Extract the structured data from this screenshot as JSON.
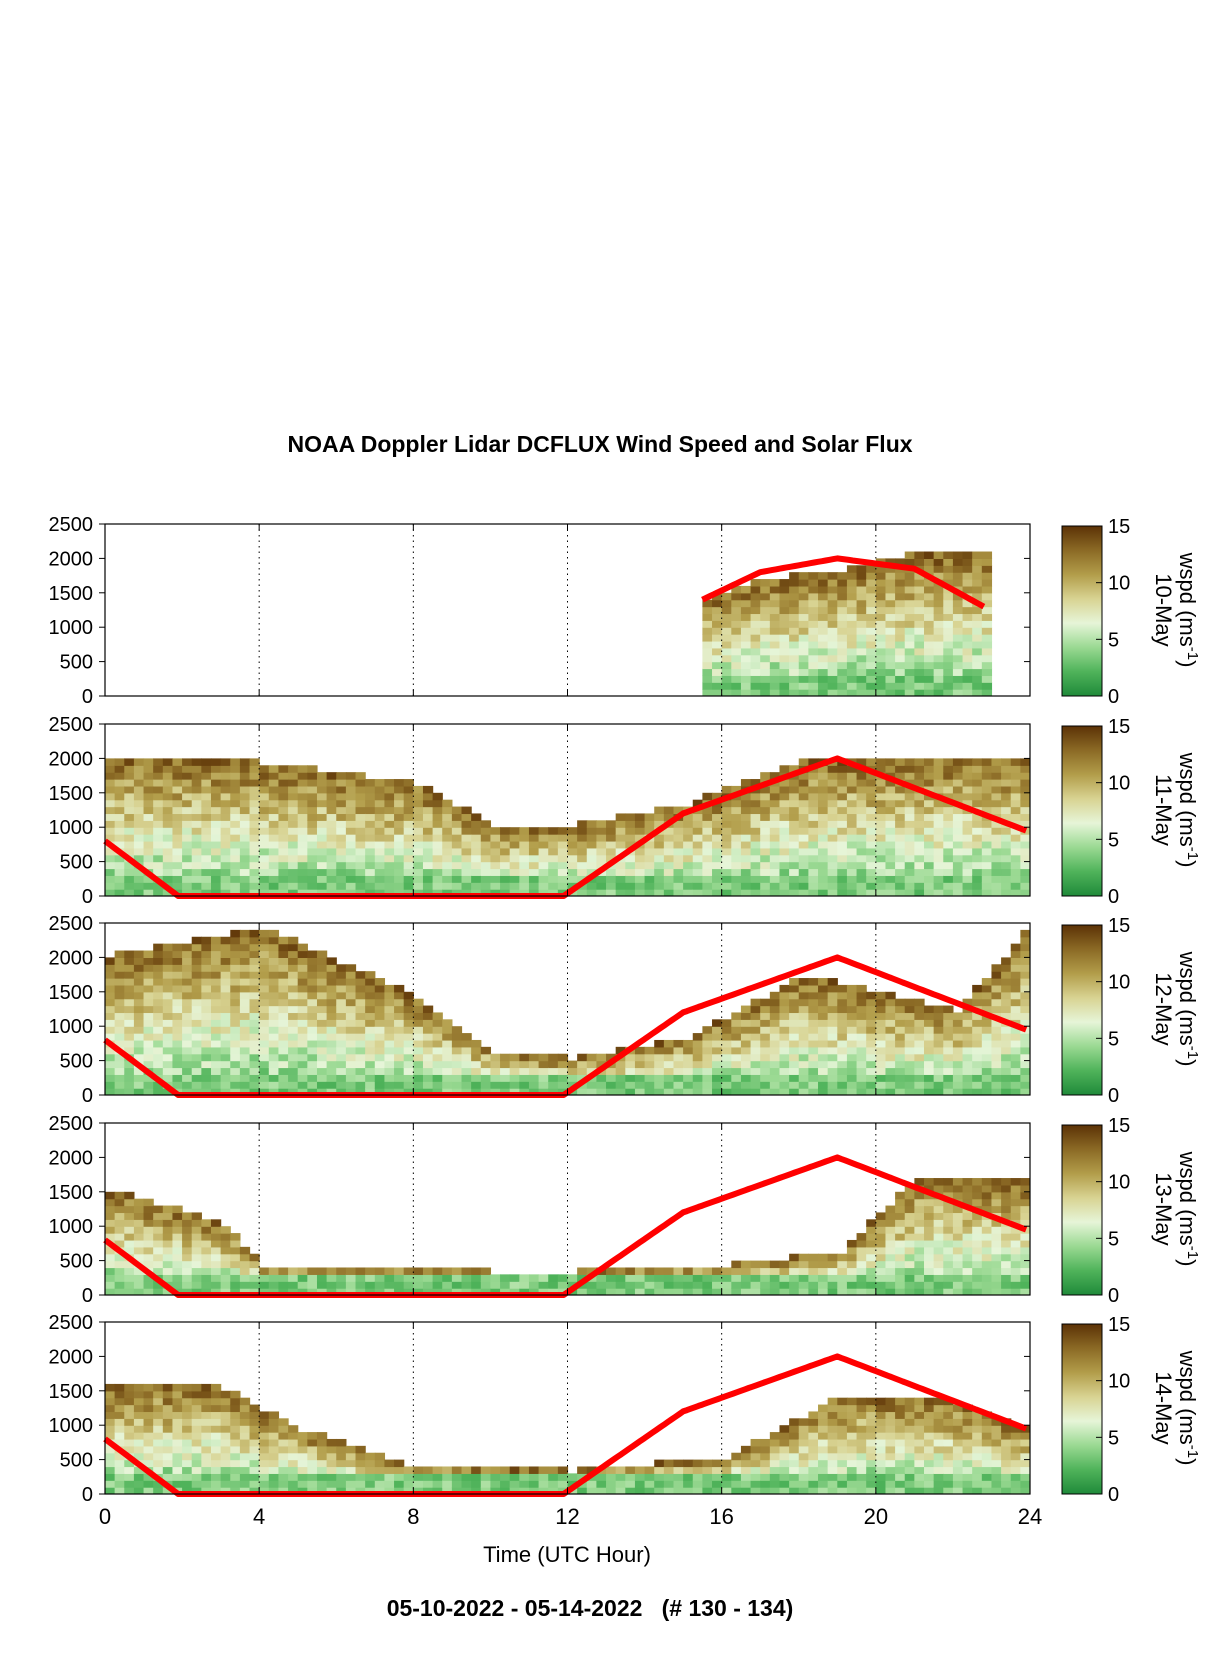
{
  "figure": {
    "title": "NOAA Doppler Lidar DCFLUX Wind Speed and Solar Flux",
    "footer": "05-10-2022 - 05-14-2022   (# 130 - 134)"
  },
  "colorbar": {
    "label_prefix": "wspd (ms",
    "label_sup": "-1",
    "label_suffix": ")",
    "ticks": [
      "0",
      "5",
      "10",
      "15"
    ],
    "range": [
      0,
      15
    ],
    "colors": [
      "#1f8a3a",
      "#4fb35a",
      "#9ad992",
      "#e6f5d8",
      "#d8d392",
      "#b29d4a",
      "#8b6a25",
      "#5c3206"
    ]
  },
  "chart_data": {
    "type": "heatmap",
    "xlabel": "Time (UTC Hour)",
    "x_ticks": [
      "0",
      "4",
      "8",
      "12",
      "16",
      "20",
      "24"
    ],
    "xlim": [
      0,
      24
    ],
    "ylim": [
      0,
      2500
    ],
    "y_ticks": [
      "0",
      "500",
      "1000",
      "1500",
      "2000",
      "2500"
    ],
    "value_range": [
      0,
      15
    ],
    "solar_flux_overlay_color": "#ff0000",
    "panels": [
      {
        "date_label": "10-May",
        "data_start_hour": 15.5,
        "data_end_hour": 22.8,
        "top_height_m": [
          [
            15.5,
            1400
          ],
          [
            17,
            1650
          ],
          [
            19,
            1800
          ],
          [
            20.5,
            2000
          ],
          [
            22.8,
            2050
          ]
        ],
        "solar_flux": [
          [
            15.5,
            1400
          ],
          [
            17,
            1800
          ],
          [
            19,
            2000
          ],
          [
            21,
            1850
          ],
          [
            22.8,
            1300
          ]
        ]
      },
      {
        "date_label": "11-May",
        "data_start_hour": 0,
        "data_end_hour": 23.9,
        "top_height_m": [
          [
            0,
            2000
          ],
          [
            4,
            1900
          ],
          [
            8,
            1600
          ],
          [
            10,
            1000
          ],
          [
            12,
            1000
          ],
          [
            15,
            1300
          ],
          [
            18,
            1950
          ],
          [
            22,
            2000
          ],
          [
            23.9,
            1900
          ]
        ],
        "solar_flux": [
          [
            0,
            800
          ],
          [
            1.9,
            0
          ],
          [
            11.9,
            0
          ],
          [
            15,
            1200
          ],
          [
            19,
            2000
          ],
          [
            23.9,
            950
          ]
        ]
      },
      {
        "date_label": "12-May",
        "data_start_hour": 0,
        "data_end_hour": 23.9,
        "top_height_m": [
          [
            0,
            2000
          ],
          [
            4,
            2400
          ],
          [
            8,
            1400
          ],
          [
            10,
            600
          ],
          [
            12,
            500
          ],
          [
            15,
            800
          ],
          [
            18,
            1700
          ],
          [
            22,
            1200
          ],
          [
            23.9,
            2400
          ]
        ],
        "solar_flux": [
          [
            0,
            800
          ],
          [
            1.9,
            0
          ],
          [
            11.9,
            0
          ],
          [
            15,
            1200
          ],
          [
            19,
            2000
          ],
          [
            23.9,
            950
          ]
        ]
      },
      {
        "date_label": "13-May",
        "data_start_hour": 0,
        "data_end_hour": 23.9,
        "top_height_m": [
          [
            0,
            1500
          ],
          [
            3,
            1000
          ],
          [
            4,
            400
          ],
          [
            10,
            300
          ],
          [
            12,
            300
          ],
          [
            16,
            400
          ],
          [
            19,
            600
          ],
          [
            21,
            1700
          ],
          [
            23.9,
            1600
          ]
        ],
        "solar_flux": [
          [
            0,
            800
          ],
          [
            1.9,
            0
          ],
          [
            11.9,
            0
          ],
          [
            15,
            1200
          ],
          [
            19,
            2000
          ],
          [
            23.9,
            950
          ]
        ]
      },
      {
        "date_label": "14-May",
        "data_start_hour": 0,
        "data_end_hour": 23.9,
        "top_height_m": [
          [
            0,
            1600
          ],
          [
            3,
            1500
          ],
          [
            5,
            900
          ],
          [
            8,
            350
          ],
          [
            12,
            300
          ],
          [
            16,
            500
          ],
          [
            19,
            1400
          ],
          [
            22,
            1300
          ],
          [
            23.9,
            900
          ]
        ],
        "solar_flux": [
          [
            0,
            800
          ],
          [
            1.9,
            0
          ],
          [
            11.9,
            0
          ],
          [
            15,
            1200
          ],
          [
            19,
            2000
          ],
          [
            23.9,
            950
          ]
        ]
      }
    ]
  }
}
